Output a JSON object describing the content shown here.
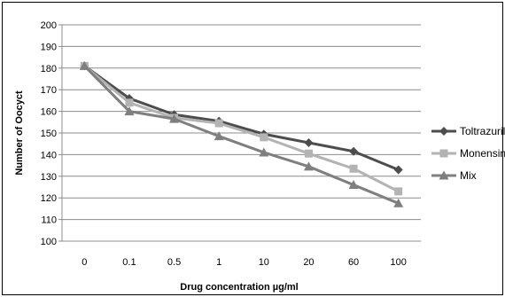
{
  "chart_data": {
    "type": "line",
    "title": "",
    "xlabel": "Drug concentration µg/ml",
    "ylabel": "Number of Oocyct",
    "categories": [
      "0",
      "0.1",
      "0.5",
      "1",
      "10",
      "20",
      "60",
      "100"
    ],
    "ylim": [
      100,
      200
    ],
    "yticks": [
      100,
      110,
      120,
      130,
      140,
      150,
      160,
      170,
      180,
      190,
      200
    ],
    "grid": "horizontal",
    "legend_position": "right",
    "series": [
      {
        "name": "Toltrazuril",
        "marker": "diamond",
        "color": "#4d4d4d",
        "values": [
          181,
          166,
          158.5,
          155.5,
          149.5,
          145.5,
          141.5,
          133
        ]
      },
      {
        "name": "Monensin",
        "marker": "square",
        "color": "#b3b3b3",
        "values": [
          181,
          164,
          157,
          154.5,
          148,
          140.5,
          133.5,
          123
        ]
      },
      {
        "name": "Mix",
        "marker": "triangle",
        "color": "#7f7f7f",
        "values": [
          181,
          160,
          156.5,
          148.5,
          141,
          134.5,
          126,
          117.5
        ]
      }
    ]
  }
}
